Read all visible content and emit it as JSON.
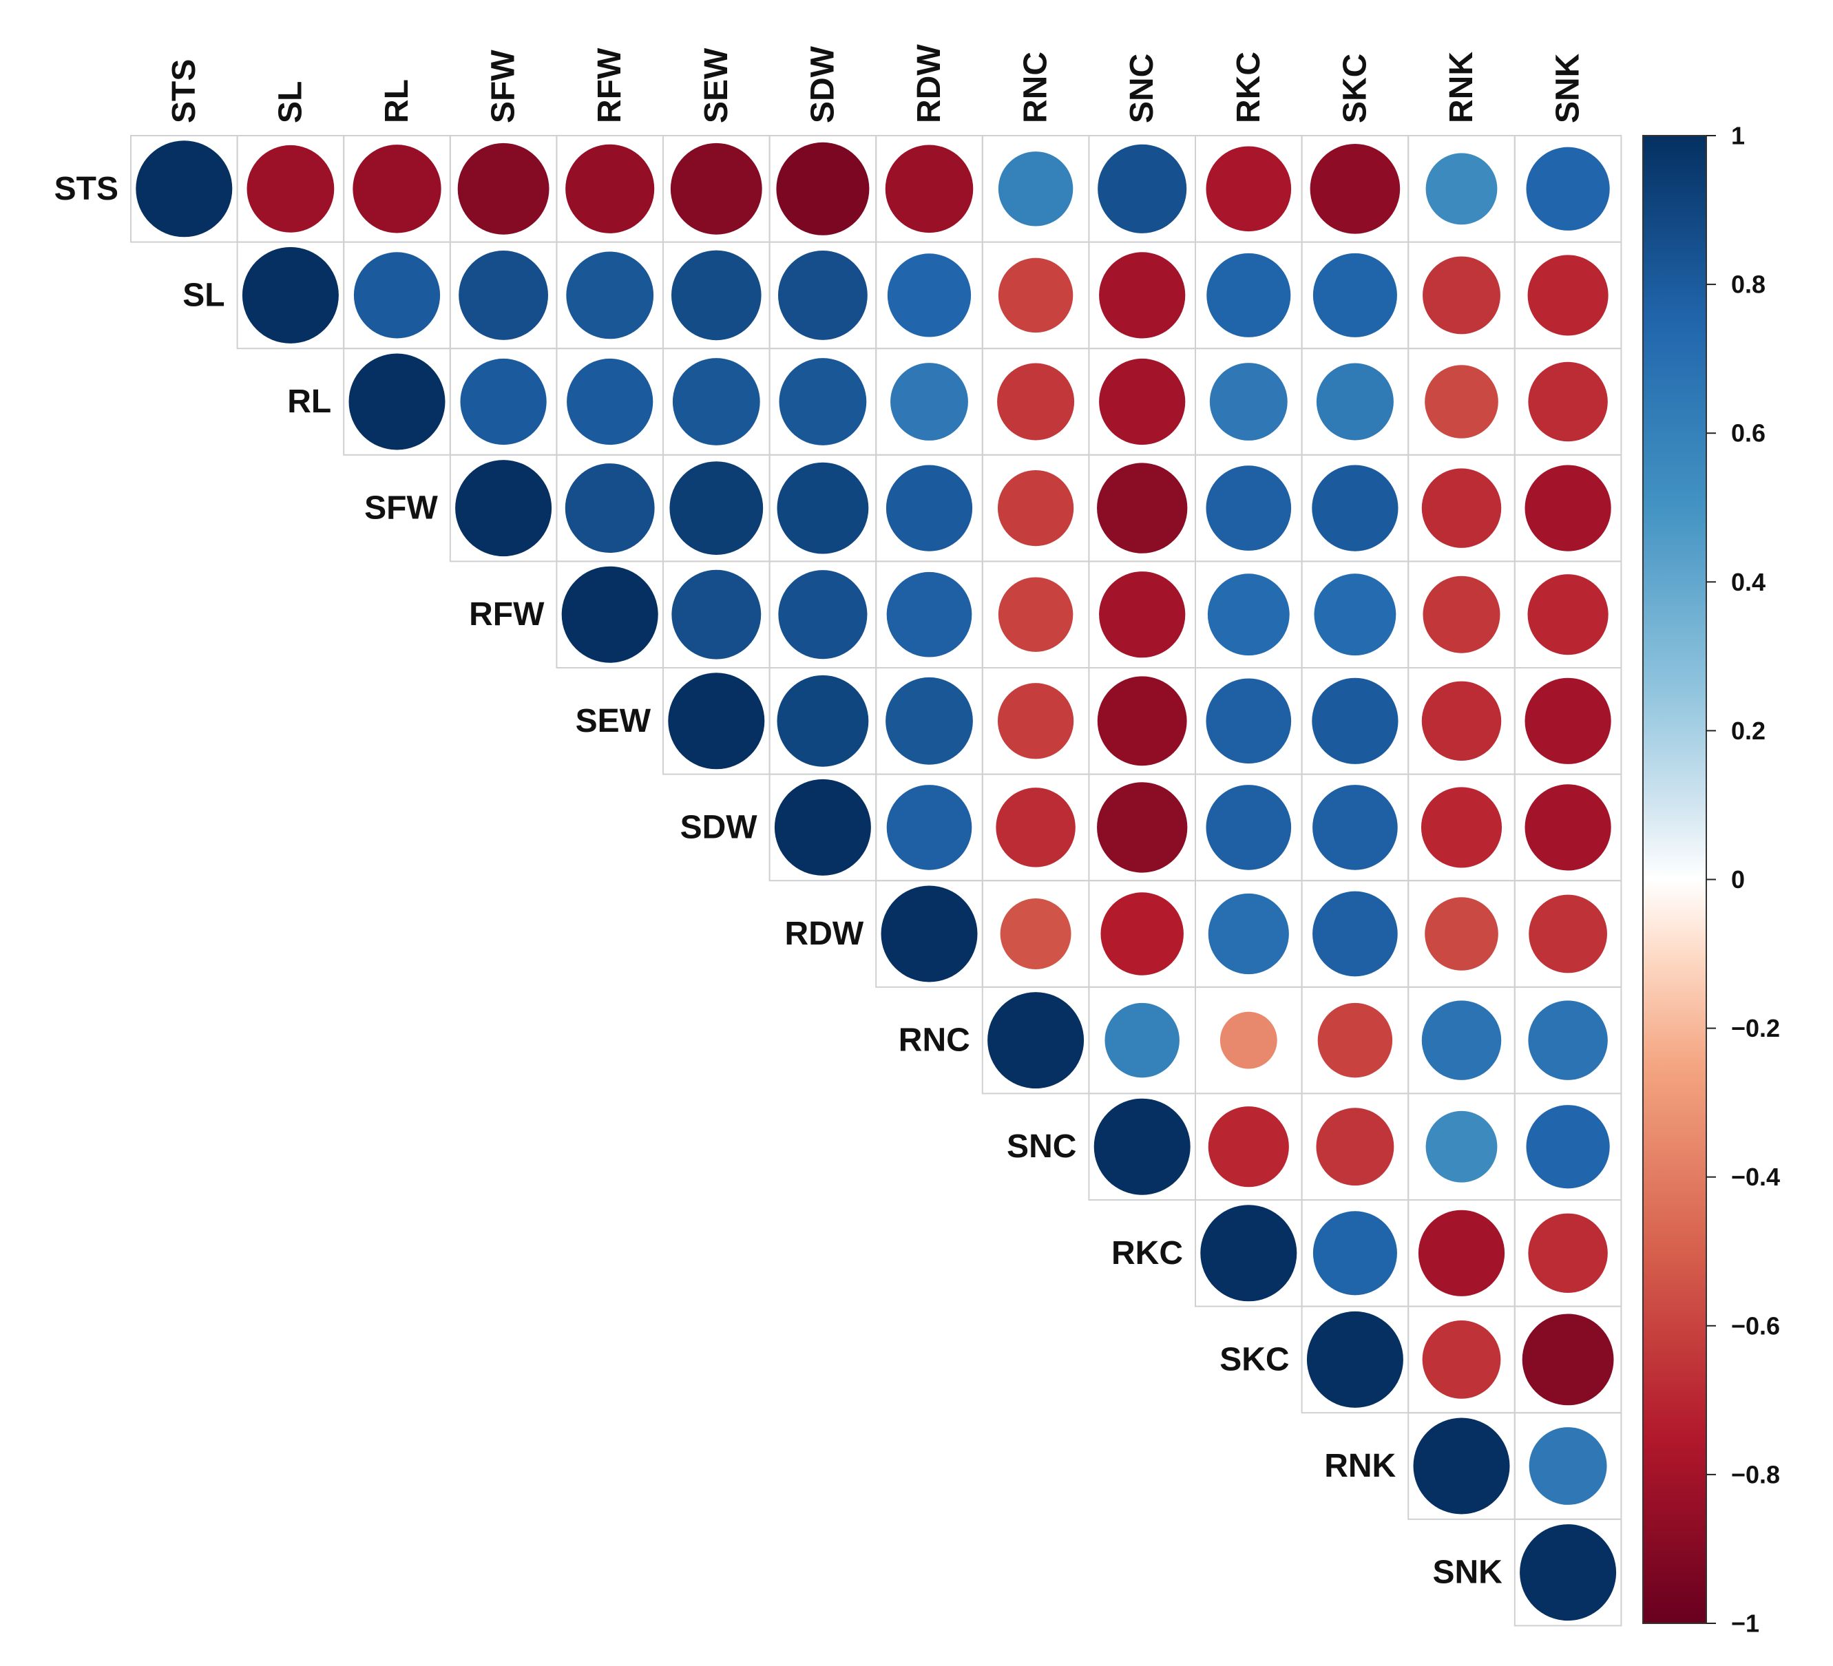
{
  "chart_data": {
    "type": "heatmap",
    "subtype": "correlation-upper-triangle-circles",
    "title": "",
    "variables": [
      "STS",
      "SL",
      "RL",
      "SFW",
      "RFW",
      "SEW",
      "SDW",
      "RDW",
      "RNC",
      "SNC",
      "RKC",
      "SKC",
      "RNK",
      "SNK"
    ],
    "matrix": [
      [
        1.0,
        -0.82,
        -0.84,
        -0.9,
        -0.85,
        -0.9,
        -0.93,
        -0.83,
        0.6,
        0.85,
        -0.78,
        -0.87,
        0.55,
        0.75
      ],
      [
        null,
        1.0,
        0.8,
        0.86,
        0.82,
        0.87,
        0.86,
        0.75,
        -0.6,
        -0.8,
        0.76,
        0.76,
        -0.65,
        -0.7
      ],
      [
        null,
        null,
        1.0,
        0.8,
        0.8,
        0.82,
        0.82,
        0.65,
        -0.64,
        -0.8,
        0.65,
        0.64,
        -0.58,
        -0.68
      ],
      [
        null,
        null,
        null,
        1.0,
        0.86,
        0.94,
        0.9,
        0.8,
        -0.62,
        -0.88,
        0.78,
        0.8,
        -0.68,
        -0.8
      ],
      [
        null,
        null,
        null,
        null,
        1.0,
        0.86,
        0.85,
        0.78,
        -0.6,
        -0.8,
        0.72,
        0.72,
        -0.64,
        -0.7
      ],
      [
        null,
        null,
        null,
        null,
        null,
        1.0,
        0.9,
        0.82,
        -0.62,
        -0.86,
        0.78,
        0.8,
        -0.68,
        -0.8
      ],
      [
        null,
        null,
        null,
        null,
        null,
        null,
        1.0,
        0.78,
        -0.68,
        -0.88,
        0.78,
        0.78,
        -0.7,
        -0.8
      ],
      [
        null,
        null,
        null,
        null,
        null,
        null,
        null,
        1.0,
        -0.54,
        -0.74,
        0.7,
        0.78,
        -0.58,
        -0.66
      ],
      [
        null,
        null,
        null,
        null,
        null,
        null,
        null,
        null,
        1.0,
        0.6,
        -0.35,
        -0.6,
        0.68,
        0.68
      ],
      [
        null,
        null,
        null,
        null,
        null,
        null,
        null,
        null,
        null,
        1.0,
        -0.7,
        -0.65,
        0.55,
        0.75
      ],
      [
        null,
        null,
        null,
        null,
        null,
        null,
        null,
        null,
        null,
        null,
        1.0,
        0.76,
        -0.8,
        -0.68
      ],
      [
        null,
        null,
        null,
        null,
        null,
        null,
        null,
        null,
        null,
        null,
        null,
        1.0,
        -0.66,
        -0.9
      ],
      [
        null,
        null,
        null,
        null,
        null,
        null,
        null,
        null,
        null,
        null,
        null,
        null,
        1.0,
        0.65
      ],
      [
        null,
        null,
        null,
        null,
        null,
        null,
        null,
        null,
        null,
        null,
        null,
        null,
        null,
        1.0
      ]
    ],
    "colorbar": {
      "range": [
        -1,
        1
      ],
      "tick_labels": [
        "1",
        "0.8",
        "0.6",
        "0.4",
        "0.2",
        "0",
        "−0.2",
        "−0.4",
        "−0.6",
        "−0.8",
        "−1"
      ],
      "tick_values": [
        1,
        0.8,
        0.6,
        0.4,
        0.2,
        0,
        -0.2,
        -0.4,
        -0.6,
        -0.8,
        -1
      ],
      "stops": [
        {
          "v": -1.0,
          "color": "#67001f"
        },
        {
          "v": -0.75,
          "color": "#b2182b"
        },
        {
          "v": -0.5,
          "color": "#d6604d"
        },
        {
          "v": -0.25,
          "color": "#f4a582"
        },
        {
          "v": -0.1,
          "color": "#fddbc7"
        },
        {
          "v": 0.0,
          "color": "#ffffff"
        },
        {
          "v": 0.1,
          "color": "#d1e5f0"
        },
        {
          "v": 0.25,
          "color": "#92c5de"
        },
        {
          "v": 0.5,
          "color": "#4393c3"
        },
        {
          "v": 0.75,
          "color": "#2166ac"
        },
        {
          "v": 1.0,
          "color": "#053061"
        }
      ]
    },
    "grid_color": "#d0d0d0",
    "label_color": "#111111"
  }
}
